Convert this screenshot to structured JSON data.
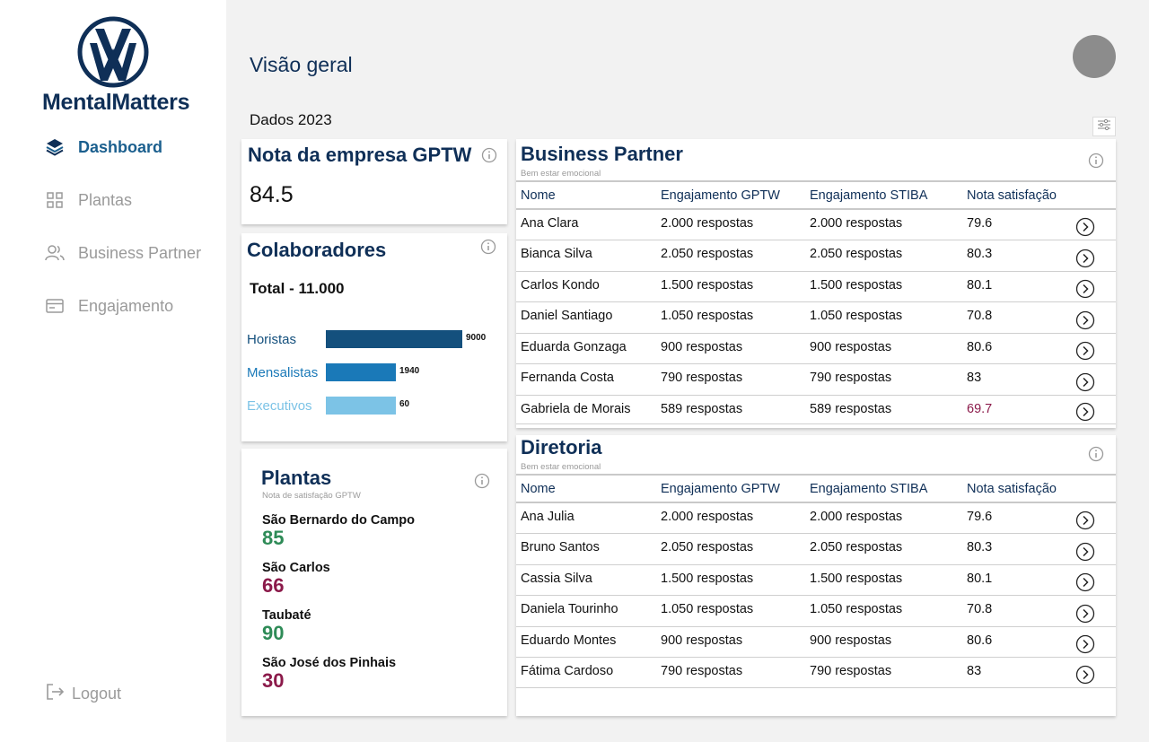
{
  "brand": {
    "name": "MentalMatters"
  },
  "sidebar": {
    "items": [
      {
        "label": "Dashboard",
        "icon": "stack-icon",
        "active": true
      },
      {
        "label": "Plantas",
        "icon": "grid-icon",
        "active": false
      },
      {
        "label": "Business Partner",
        "icon": "users-icon",
        "active": false
      },
      {
        "label": "Engajamento",
        "icon": "card-icon",
        "active": false
      }
    ],
    "logout": "Logout"
  },
  "header": {
    "title": "Visão geral",
    "year_label": "Dados 2023"
  },
  "gptw": {
    "title": "Nota da empresa GPTW",
    "score": "84.5"
  },
  "colaboradores": {
    "title": "Colaboradores",
    "total": "Total - 11.000",
    "bars": [
      {
        "label": "Horistas",
        "value": 9000,
        "value_text": "9000",
        "color": "#14507d"
      },
      {
        "label": "Mensalistas",
        "value": 1940,
        "value_text": "1940",
        "color": "#1a79b8"
      },
      {
        "label": "Executivos",
        "value": 60,
        "value_text": "60",
        "color": "#7cc3e6"
      }
    ]
  },
  "plantas": {
    "title": "Plantas",
    "subtitle": "Nota de satisfação GPTW",
    "items": [
      {
        "name": "São Bernardo do Campo",
        "score": "85",
        "color": "#2e8b57"
      },
      {
        "name": "São Carlos",
        "score": "66",
        "color": "#8b1a4a"
      },
      {
        "name": "Taubaté",
        "score": "90",
        "color": "#2e8b57"
      },
      {
        "name": "São José dos Pinhais",
        "score": "30",
        "color": "#8b1a4a"
      }
    ]
  },
  "business_partner": {
    "title": "Business Partner",
    "subtitle": "Bem estar emocional",
    "headers": [
      "Nome",
      "Engajamento GPTW",
      "Engajamento STIBA",
      "Nota satisfação"
    ],
    "rows": [
      {
        "nome": "Ana Clara",
        "gptw": "2.000 respostas",
        "stiba": "2.000 respostas",
        "nota": "79.6",
        "low": false
      },
      {
        "nome": "Bianca Silva",
        "gptw": "2.050 respostas",
        "stiba": "2.050 respostas",
        "nota": "80.3",
        "low": false
      },
      {
        "nome": "Carlos Kondo",
        "gptw": "1.500 respostas",
        "stiba": "1.500 respostas",
        "nota": "80.1",
        "low": false
      },
      {
        "nome": "Daniel Santiago",
        "gptw": "1.050 respostas",
        "stiba": "1.050 respostas",
        "nota": "70.8",
        "low": false
      },
      {
        "nome": "Eduarda Gonzaga",
        "gptw": "900 respostas",
        "stiba": "900 respostas",
        "nota": "80.6",
        "low": false
      },
      {
        "nome": "Fernanda Costa",
        "gptw": "790 respostas",
        "stiba": "790 respostas",
        "nota": "83",
        "low": false
      },
      {
        "nome": "Gabriela de Morais",
        "gptw": "589 respostas",
        "stiba": "589 respostas",
        "nota": "69.7",
        "low": true
      }
    ]
  },
  "diretoria": {
    "title": "Diretoria",
    "subtitle": "Bem estar emocional",
    "headers": [
      "Nome",
      "Engajamento GPTW",
      "Engajamento STIBA",
      "Nota satisfação"
    ],
    "rows": [
      {
        "nome": "Ana Julia",
        "gptw": "2.000 respostas",
        "stiba": "2.000 respostas",
        "nota": "79.6",
        "low": false
      },
      {
        "nome": "Bruno Santos",
        "gptw": "2.050 respostas",
        "stiba": "2.050 respostas",
        "nota": "80.3",
        "low": false
      },
      {
        "nome": "Cassia Silva",
        "gptw": "1.500 respostas",
        "stiba": "1.500 respostas",
        "nota": "80.1",
        "low": false
      },
      {
        "nome": "Daniela Tourinho",
        "gptw": "1.050 respostas",
        "stiba": "1.050 respostas",
        "nota": "70.8",
        "low": false
      },
      {
        "nome": "Eduardo Montes",
        "gptw": "900 respostas",
        "stiba": "900 respostas",
        "nota": "80.6",
        "low": false
      },
      {
        "nome": "Fátima Cardoso",
        "gptw": "790 respostas",
        "stiba": "790 respostas",
        "nota": "83",
        "low": false
      }
    ]
  },
  "colors": {
    "brand": "#0f2f57",
    "accent": "#1b5f8e",
    "low_score": "#8b1a4a",
    "good_score": "#2e8b57"
  }
}
